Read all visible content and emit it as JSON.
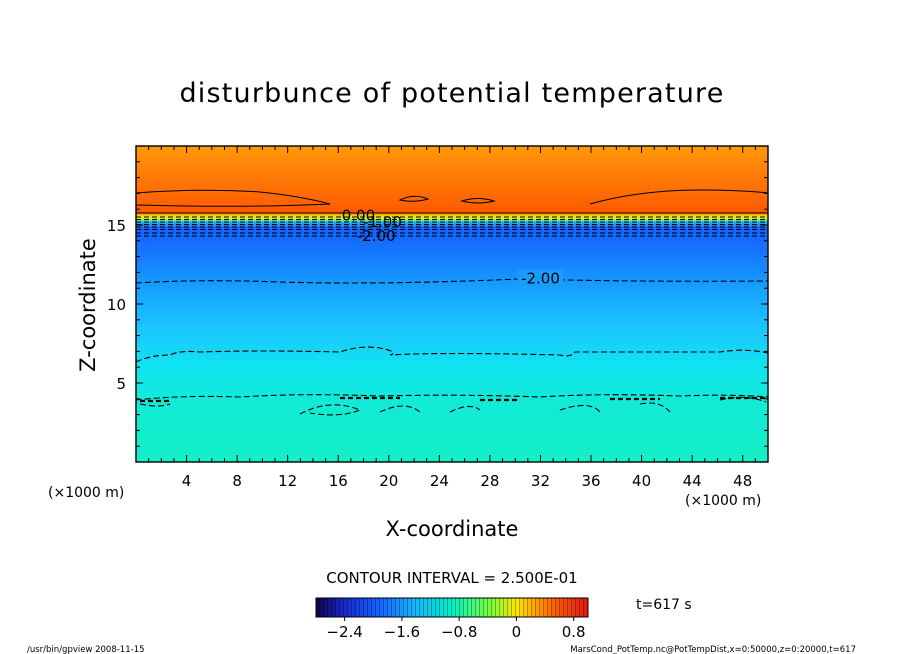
{
  "chart_data": {
    "type": "contour",
    "title": "disturbunce of potential temperature",
    "xlabel": "X-coordinate",
    "ylabel": "Z-coordinate",
    "x_unit_left": "(×1000 m)",
    "x_unit_right": "(×1000 m)",
    "xlim": [
      0,
      50
    ],
    "ylim": [
      0,
      20
    ],
    "x_ticks": [
      4,
      8,
      12,
      16,
      20,
      24,
      28,
      32,
      36,
      40,
      44,
      48
    ],
    "y_ticks": [
      5,
      10,
      15
    ],
    "contour_labels": [
      {
        "text": "0.00",
        "x": 17.6,
        "z": 15.6
      },
      {
        "text": "-1.00",
        "x": 19.5,
        "z": 15.2
      },
      {
        "text": "-2.00",
        "x": 19.0,
        "z": 14.3
      },
      {
        "text": "-2.00",
        "x": 32.0,
        "z": 11.6
      }
    ],
    "contour_interval_text": "CONTOUR INTERVAL = 2.500E-01",
    "time_text": "t=617 s",
    "colorbar": {
      "min": -2.8,
      "max": 1.0,
      "tick_values": [
        -2.4,
        -1.6,
        -0.8,
        0,
        0.8
      ],
      "tick_labels": [
        "−2.4",
        "−1.6",
        "−0.8",
        "0",
        "0.8"
      ]
    },
    "footer_left": "/usr/bin/gpview   2008-11-15",
    "footer_right": "MarsCond_PotTemp.nc@PotTempDist,x=0:50000,z=0:20000,t=617"
  }
}
